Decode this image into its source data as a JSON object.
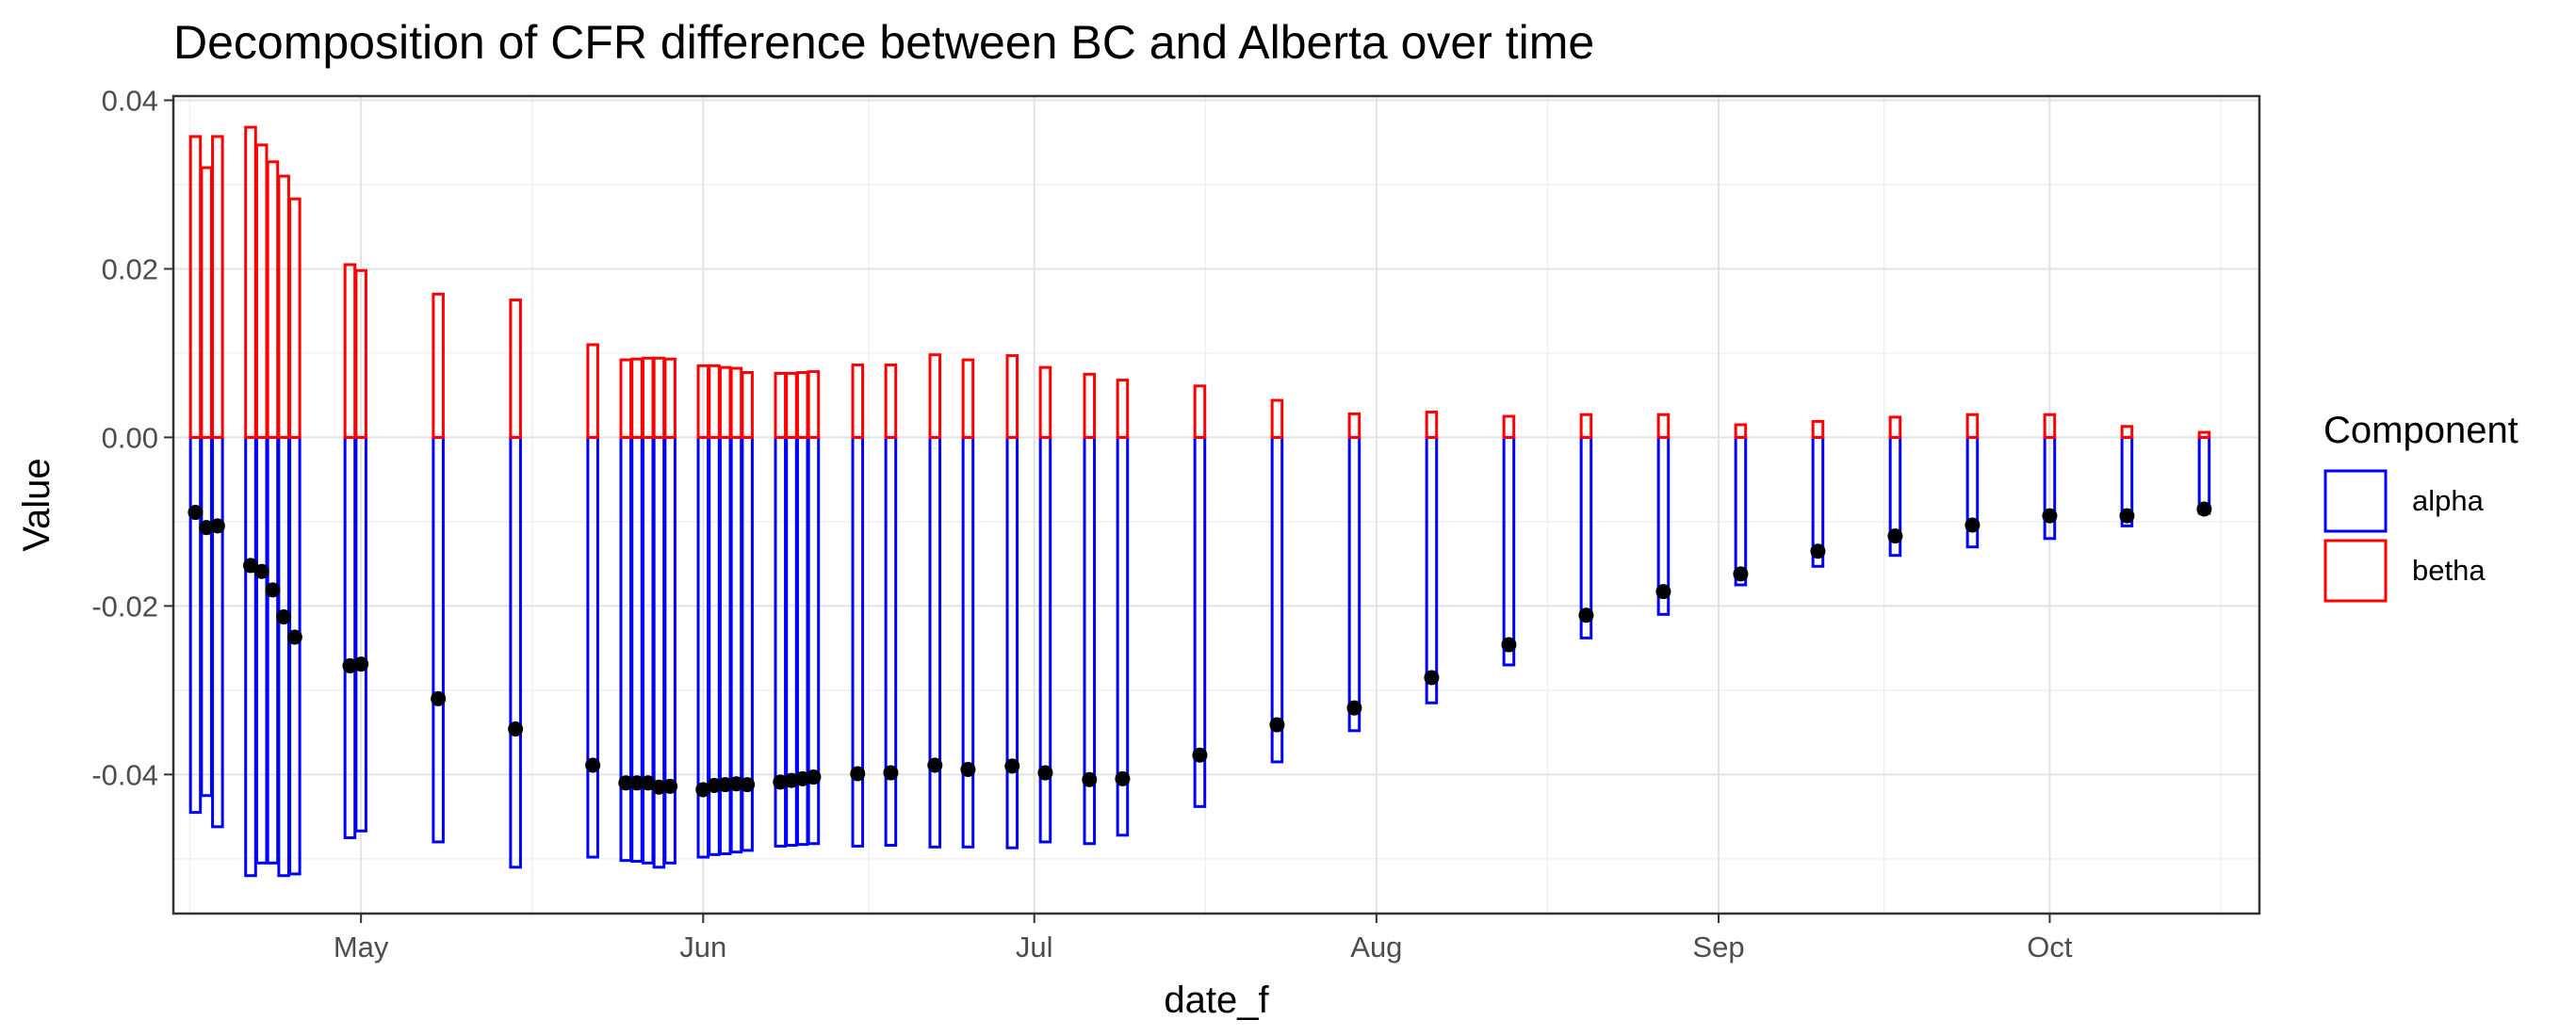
{
  "chart_data": {
    "type": "bar",
    "subtype": "stacked-decomposition-bars-with-points",
    "title": "Decomposition of CFR difference between BC and Alberta over time",
    "xlabel": "date_f",
    "ylabel": "Value",
    "xlim": [
      "2020-04-14",
      "2020-10-20"
    ],
    "ylim": [
      -0.0565,
      0.0405
    ],
    "grid": true,
    "x_ticks": [
      {
        "date": "2020-05-01",
        "label": "May"
      },
      {
        "date": "2020-06-01",
        "label": "Jun"
      },
      {
        "date": "2020-07-01",
        "label": "Jul"
      },
      {
        "date": "2020-08-01",
        "label": "Aug"
      },
      {
        "date": "2020-09-01",
        "label": "Sep"
      },
      {
        "date": "2020-10-01",
        "label": "Oct"
      }
    ],
    "y_ticks": [
      {
        "value": 0.04,
        "label": "0.04"
      },
      {
        "value": 0.02,
        "label": "0.02"
      },
      {
        "value": 0.0,
        "label": "0.00"
      },
      {
        "value": -0.02,
        "label": "-0.02"
      },
      {
        "value": -0.04,
        "label": "-0.04"
      }
    ],
    "legend": {
      "title": "Component",
      "position": "right",
      "entries": [
        {
          "name": "alpha",
          "color": "#0000ff"
        },
        {
          "name": "betha",
          "color": "#ff0000"
        }
      ]
    },
    "series": [
      {
        "name": "alpha",
        "color": "#0000ff",
        "dates": [
          "2020-04-16",
          "2020-04-17",
          "2020-04-18",
          "2020-04-21",
          "2020-04-22",
          "2020-04-23",
          "2020-04-24",
          "2020-04-25",
          "2020-04-30",
          "2020-05-01",
          "2020-05-08",
          "2020-05-15",
          "2020-05-22",
          "2020-05-25",
          "2020-05-26",
          "2020-05-27",
          "2020-05-28",
          "2020-05-29",
          "2020-06-01",
          "2020-06-02",
          "2020-06-03",
          "2020-06-04",
          "2020-06-05",
          "2020-06-08",
          "2020-06-09",
          "2020-06-10",
          "2020-06-11",
          "2020-06-15",
          "2020-06-18",
          "2020-06-22",
          "2020-06-25",
          "2020-06-29",
          "2020-07-02",
          "2020-07-06",
          "2020-07-09",
          "2020-07-16",
          "2020-07-23",
          "2020-07-30",
          "2020-08-06",
          "2020-08-13",
          "2020-08-20",
          "2020-08-27",
          "2020-09-03",
          "2020-09-10",
          "2020-09-17",
          "2020-09-24",
          "2020-10-01",
          "2020-10-08",
          "2020-10-15"
        ],
        "values": [
          -0.0445,
          -0.0425,
          -0.0462,
          -0.052,
          -0.0505,
          -0.0505,
          -0.052,
          -0.0518,
          -0.0475,
          -0.0467,
          -0.048,
          -0.051,
          -0.0498,
          -0.0502,
          -0.0503,
          -0.0505,
          -0.051,
          -0.0505,
          -0.0498,
          -0.0495,
          -0.0494,
          -0.0492,
          -0.049,
          -0.0485,
          -0.0484,
          -0.0483,
          -0.0482,
          -0.0485,
          -0.0484,
          -0.0486,
          -0.0486,
          -0.0487,
          -0.048,
          -0.0482,
          -0.0472,
          -0.0438,
          -0.0385,
          -0.0348,
          -0.0315,
          -0.027,
          -0.0238,
          -0.021,
          -0.0175,
          -0.0153,
          -0.014,
          -0.013,
          -0.012,
          -0.0105,
          -0.009
        ]
      },
      {
        "name": "betha",
        "color": "#ff0000",
        "dates": [
          "2020-04-16",
          "2020-04-17",
          "2020-04-18",
          "2020-04-21",
          "2020-04-22",
          "2020-04-23",
          "2020-04-24",
          "2020-04-25",
          "2020-04-30",
          "2020-05-01",
          "2020-05-08",
          "2020-05-15",
          "2020-05-22",
          "2020-05-25",
          "2020-05-26",
          "2020-05-27",
          "2020-05-28",
          "2020-05-29",
          "2020-06-01",
          "2020-06-02",
          "2020-06-03",
          "2020-06-04",
          "2020-06-05",
          "2020-06-08",
          "2020-06-09",
          "2020-06-10",
          "2020-06-11",
          "2020-06-15",
          "2020-06-18",
          "2020-06-22",
          "2020-06-25",
          "2020-06-29",
          "2020-07-02",
          "2020-07-06",
          "2020-07-09",
          "2020-07-16",
          "2020-07-23",
          "2020-07-30",
          "2020-08-06",
          "2020-08-13",
          "2020-08-20",
          "2020-08-27",
          "2020-09-03",
          "2020-09-10",
          "2020-09-17",
          "2020-09-24",
          "2020-10-01",
          "2020-10-08",
          "2020-10-15"
        ],
        "values": [
          0.0357,
          0.032,
          0.0357,
          0.0368,
          0.0347,
          0.0327,
          0.031,
          0.0283,
          0.0205,
          0.0198,
          0.017,
          0.0163,
          0.011,
          0.0092,
          0.0093,
          0.0094,
          0.0094,
          0.0093,
          0.0085,
          0.0085,
          0.0083,
          0.0082,
          0.0077,
          0.0076,
          0.0076,
          0.0077,
          0.0078,
          0.0086,
          0.0086,
          0.0098,
          0.0092,
          0.0097,
          0.0083,
          0.0075,
          0.0068,
          0.0061,
          0.0044,
          0.0028,
          0.003,
          0.0025,
          0.0027,
          0.0027,
          0.0015,
          0.0019,
          0.0024,
          0.0027,
          0.0027,
          0.0013,
          0.0006
        ]
      },
      {
        "name": "total",
        "dates": [
          "2020-04-16",
          "2020-04-17",
          "2020-04-18",
          "2020-04-21",
          "2020-04-22",
          "2020-04-23",
          "2020-04-24",
          "2020-04-25",
          "2020-04-30",
          "2020-05-01",
          "2020-05-08",
          "2020-05-15",
          "2020-05-22",
          "2020-05-25",
          "2020-05-26",
          "2020-05-27",
          "2020-05-28",
          "2020-05-29",
          "2020-06-01",
          "2020-06-02",
          "2020-06-03",
          "2020-06-04",
          "2020-06-05",
          "2020-06-08",
          "2020-06-09",
          "2020-06-10",
          "2020-06-11",
          "2020-06-15",
          "2020-06-18",
          "2020-06-22",
          "2020-06-25",
          "2020-06-29",
          "2020-07-02",
          "2020-07-06",
          "2020-07-09",
          "2020-07-16",
          "2020-07-23",
          "2020-07-30",
          "2020-08-06",
          "2020-08-13",
          "2020-08-20",
          "2020-08-27",
          "2020-09-03",
          "2020-09-10",
          "2020-09-17",
          "2020-09-24",
          "2020-10-01",
          "2020-10-08",
          "2020-10-15"
        ],
        "values": [
          -0.0089,
          -0.0107,
          -0.0105,
          -0.0152,
          -0.0159,
          -0.0181,
          -0.0213,
          -0.0237,
          -0.0271,
          -0.0269,
          -0.031,
          -0.0346,
          -0.0389,
          -0.041,
          -0.041,
          -0.041,
          -0.0415,
          -0.0414,
          -0.0418,
          -0.0413,
          -0.0412,
          -0.0411,
          -0.0412,
          -0.0409,
          -0.0407,
          -0.0405,
          -0.0403,
          -0.0399,
          -0.0398,
          -0.0389,
          -0.0394,
          -0.039,
          -0.0398,
          -0.0406,
          -0.0405,
          -0.0377,
          -0.0341,
          -0.0321,
          -0.0285,
          -0.0246,
          -0.0211,
          -0.0183,
          -0.0162,
          -0.0135,
          -0.0117,
          -0.0104,
          -0.0093,
          -0.0093,
          -0.0085
        ]
      }
    ]
  }
}
